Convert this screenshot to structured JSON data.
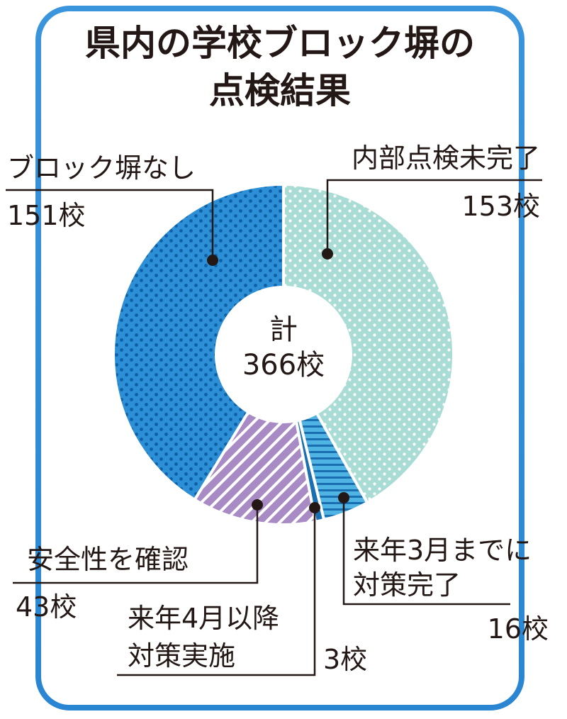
{
  "title_lines": [
    "県内の学校ブロック塀の",
    "点検結果"
  ],
  "center": {
    "line1": "計",
    "line2": "366校"
  },
  "chart_data": {
    "type": "pie",
    "title": "県内の学校ブロック塀の点検結果",
    "total_label": "計366校",
    "unit": "校",
    "slices": [
      {
        "label": "内部点検未完了",
        "value": 153,
        "display": "153校",
        "color": "#a8dcd4"
      },
      {
        "label": "来年3月までに対策完了",
        "value": 16,
        "display": "16校",
        "color": "#4fb3e4"
      },
      {
        "label": "来年4月以降対策実施",
        "value": 3,
        "display": "3校",
        "color": "#1a6fb0"
      },
      {
        "label": "安全性を確認",
        "value": 43,
        "display": "43校",
        "color": "#a88ac4"
      },
      {
        "label": "ブロック塀なし",
        "value": 151,
        "display": "151校",
        "color": "#2d8fd6"
      }
    ]
  },
  "labels": {
    "naibu": {
      "text": "内部点検未完了",
      "count": "153校"
    },
    "march_l1": "来年3月までに",
    "march_l2": "対策完了",
    "march_count": "16校",
    "april_l1": "来年4月以降",
    "april_l2": "対策実施",
    "april_count": "3校",
    "anzen": {
      "text": "安全性を確認",
      "count": "43校"
    },
    "nashi": {
      "text": "ブロック塀なし",
      "count": "151校"
    }
  },
  "colors": {
    "frame": "#2f8fd8",
    "text": "#231815"
  }
}
